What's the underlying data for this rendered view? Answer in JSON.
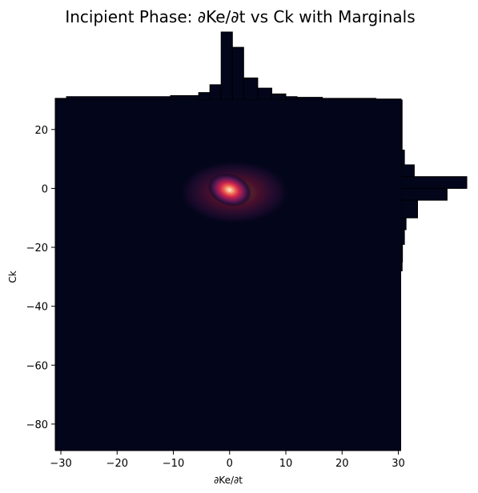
{
  "chart_data": {
    "type": "heatmap",
    "title": "Incipient Phase: ∂Ke/∂t vs Ck with Marginals",
    "xlabel": "∂Ke/∂t",
    "ylabel": "Ck",
    "xlim": [
      -31,
      30.5
    ],
    "ylim": [
      -89,
      30
    ],
    "x_ticks": [
      -30,
      -20,
      -10,
      0,
      10,
      20,
      30
    ],
    "x_tick_labels": [
      "−30",
      "−20",
      "−10",
      "0",
      "10",
      "20",
      "30"
    ],
    "y_ticks": [
      20,
      0,
      -20,
      -40,
      -60,
      -80
    ],
    "y_tick_labels": [
      "20",
      "0",
      "−20",
      "−40",
      "−60",
      "−80"
    ],
    "background_color": "#03051a",
    "colormap": "rocket",
    "density_peak": {
      "x": 0,
      "y": -0.5
    },
    "x_marginal": {
      "bin_edges": [
        -31,
        -29,
        -10.5,
        -5.5,
        -3.5,
        -1.5,
        0.5,
        2.5,
        5,
        7.5,
        10,
        12,
        16.5,
        26,
        30.5
      ],
      "counts": [
        0.5,
        1,
        1.3,
        2.2,
        4.5,
        20,
        15.5,
        6.5,
        3.5,
        1.8,
        1,
        0.8,
        0.5,
        0.3
      ]
    },
    "y_marginal": {
      "bin_edges": [
        -28,
        -25,
        -19,
        -14,
        -10,
        -4,
        0,
        4,
        8,
        13,
        30
      ],
      "counts": [
        0.3,
        0.4,
        1,
        1.5,
        5,
        14,
        20,
        4,
        1,
        0.3
      ]
    },
    "colors": {
      "bar_fill": "#03051a",
      "bar_edge": "#000000"
    }
  }
}
